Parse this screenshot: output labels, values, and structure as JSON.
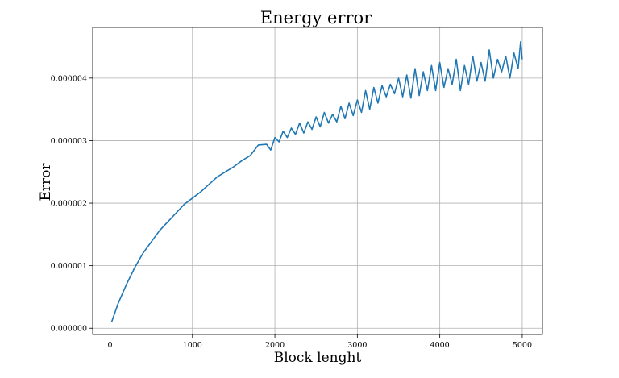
{
  "chart_data": {
    "type": "line",
    "title": "Energy error",
    "xlabel": "Block lenght",
    "ylabel": "Error",
    "xlim": [
      -210,
      5245
    ],
    "ylim": [
      -1e-07,
      4.81e-06
    ],
    "xticks": [
      0,
      1000,
      2000,
      3000,
      4000,
      5000
    ],
    "xtick_labels": [
      "0",
      "1000",
      "2000",
      "3000",
      "4000",
      "5000"
    ],
    "yticks": [
      0,
      1e-06,
      2e-06,
      3e-06,
      4e-06
    ],
    "ytick_labels": [
      "0.000000",
      "0.000001",
      "0.000002",
      "0.000003",
      "0.000004"
    ],
    "grid": true,
    "series": [
      {
        "color": "#1f77b4",
        "x": [
          20,
          100,
          200,
          300,
          400,
          500,
          600,
          700,
          800,
          900,
          1000,
          1100,
          1200,
          1300,
          1400,
          1500,
          1600,
          1700,
          1800,
          1900,
          1950,
          2000,
          2050,
          2100,
          2150,
          2200,
          2250,
          2300,
          2350,
          2400,
          2450,
          2500,
          2550,
          2600,
          2650,
          2700,
          2750,
          2800,
          2850,
          2900,
          2950,
          3000,
          3050,
          3100,
          3150,
          3200,
          3250,
          3300,
          3350,
          3400,
          3450,
          3500,
          3550,
          3600,
          3650,
          3700,
          3750,
          3800,
          3850,
          3900,
          3950,
          4000,
          4050,
          4100,
          4150,
          4200,
          4250,
          4300,
          4350,
          4400,
          4450,
          4500,
          4550,
          4600,
          4650,
          4700,
          4750,
          4800,
          4850,
          4900,
          4950,
          4980,
          5000
        ],
        "values": [
          1e-07,
          4e-07,
          7e-07,
          9.7e-07,
          1.2e-06,
          1.38e-06,
          1.56e-06,
          1.7e-06,
          1.84e-06,
          1.98e-06,
          2.08e-06,
          2.18e-06,
          2.3e-06,
          2.42e-06,
          2.5e-06,
          2.58e-06,
          2.68e-06,
          2.76e-06,
          2.93e-06,
          2.94e-06,
          2.85e-06,
          3.05e-06,
          2.98e-06,
          3.15e-06,
          3.05e-06,
          3.2e-06,
          3.1e-06,
          3.28e-06,
          3.12e-06,
          3.3e-06,
          3.18e-06,
          3.38e-06,
          3.22e-06,
          3.45e-06,
          3.28e-06,
          3.42e-06,
          3.3e-06,
          3.55e-06,
          3.35e-06,
          3.6e-06,
          3.4e-06,
          3.65e-06,
          3.45e-06,
          3.8e-06,
          3.5e-06,
          3.85e-06,
          3.6e-06,
          3.88e-06,
          3.7e-06,
          3.9e-06,
          3.75e-06,
          4e-06,
          3.7e-06,
          4.05e-06,
          3.68e-06,
          4.15e-06,
          3.72e-06,
          4.1e-06,
          3.8e-06,
          4.2e-06,
          3.8e-06,
          4.25e-06,
          3.85e-06,
          4.15e-06,
          3.9e-06,
          4.3e-06,
          3.8e-06,
          4.2e-06,
          3.9e-06,
          4.35e-06,
          3.95e-06,
          4.25e-06,
          3.95e-06,
          4.45e-06,
          4e-06,
          4.3e-06,
          4.1e-06,
          4.35e-06,
          4e-06,
          4.4e-06,
          4.15e-06,
          4.58e-06,
          4.3e-06
        ]
      }
    ]
  }
}
